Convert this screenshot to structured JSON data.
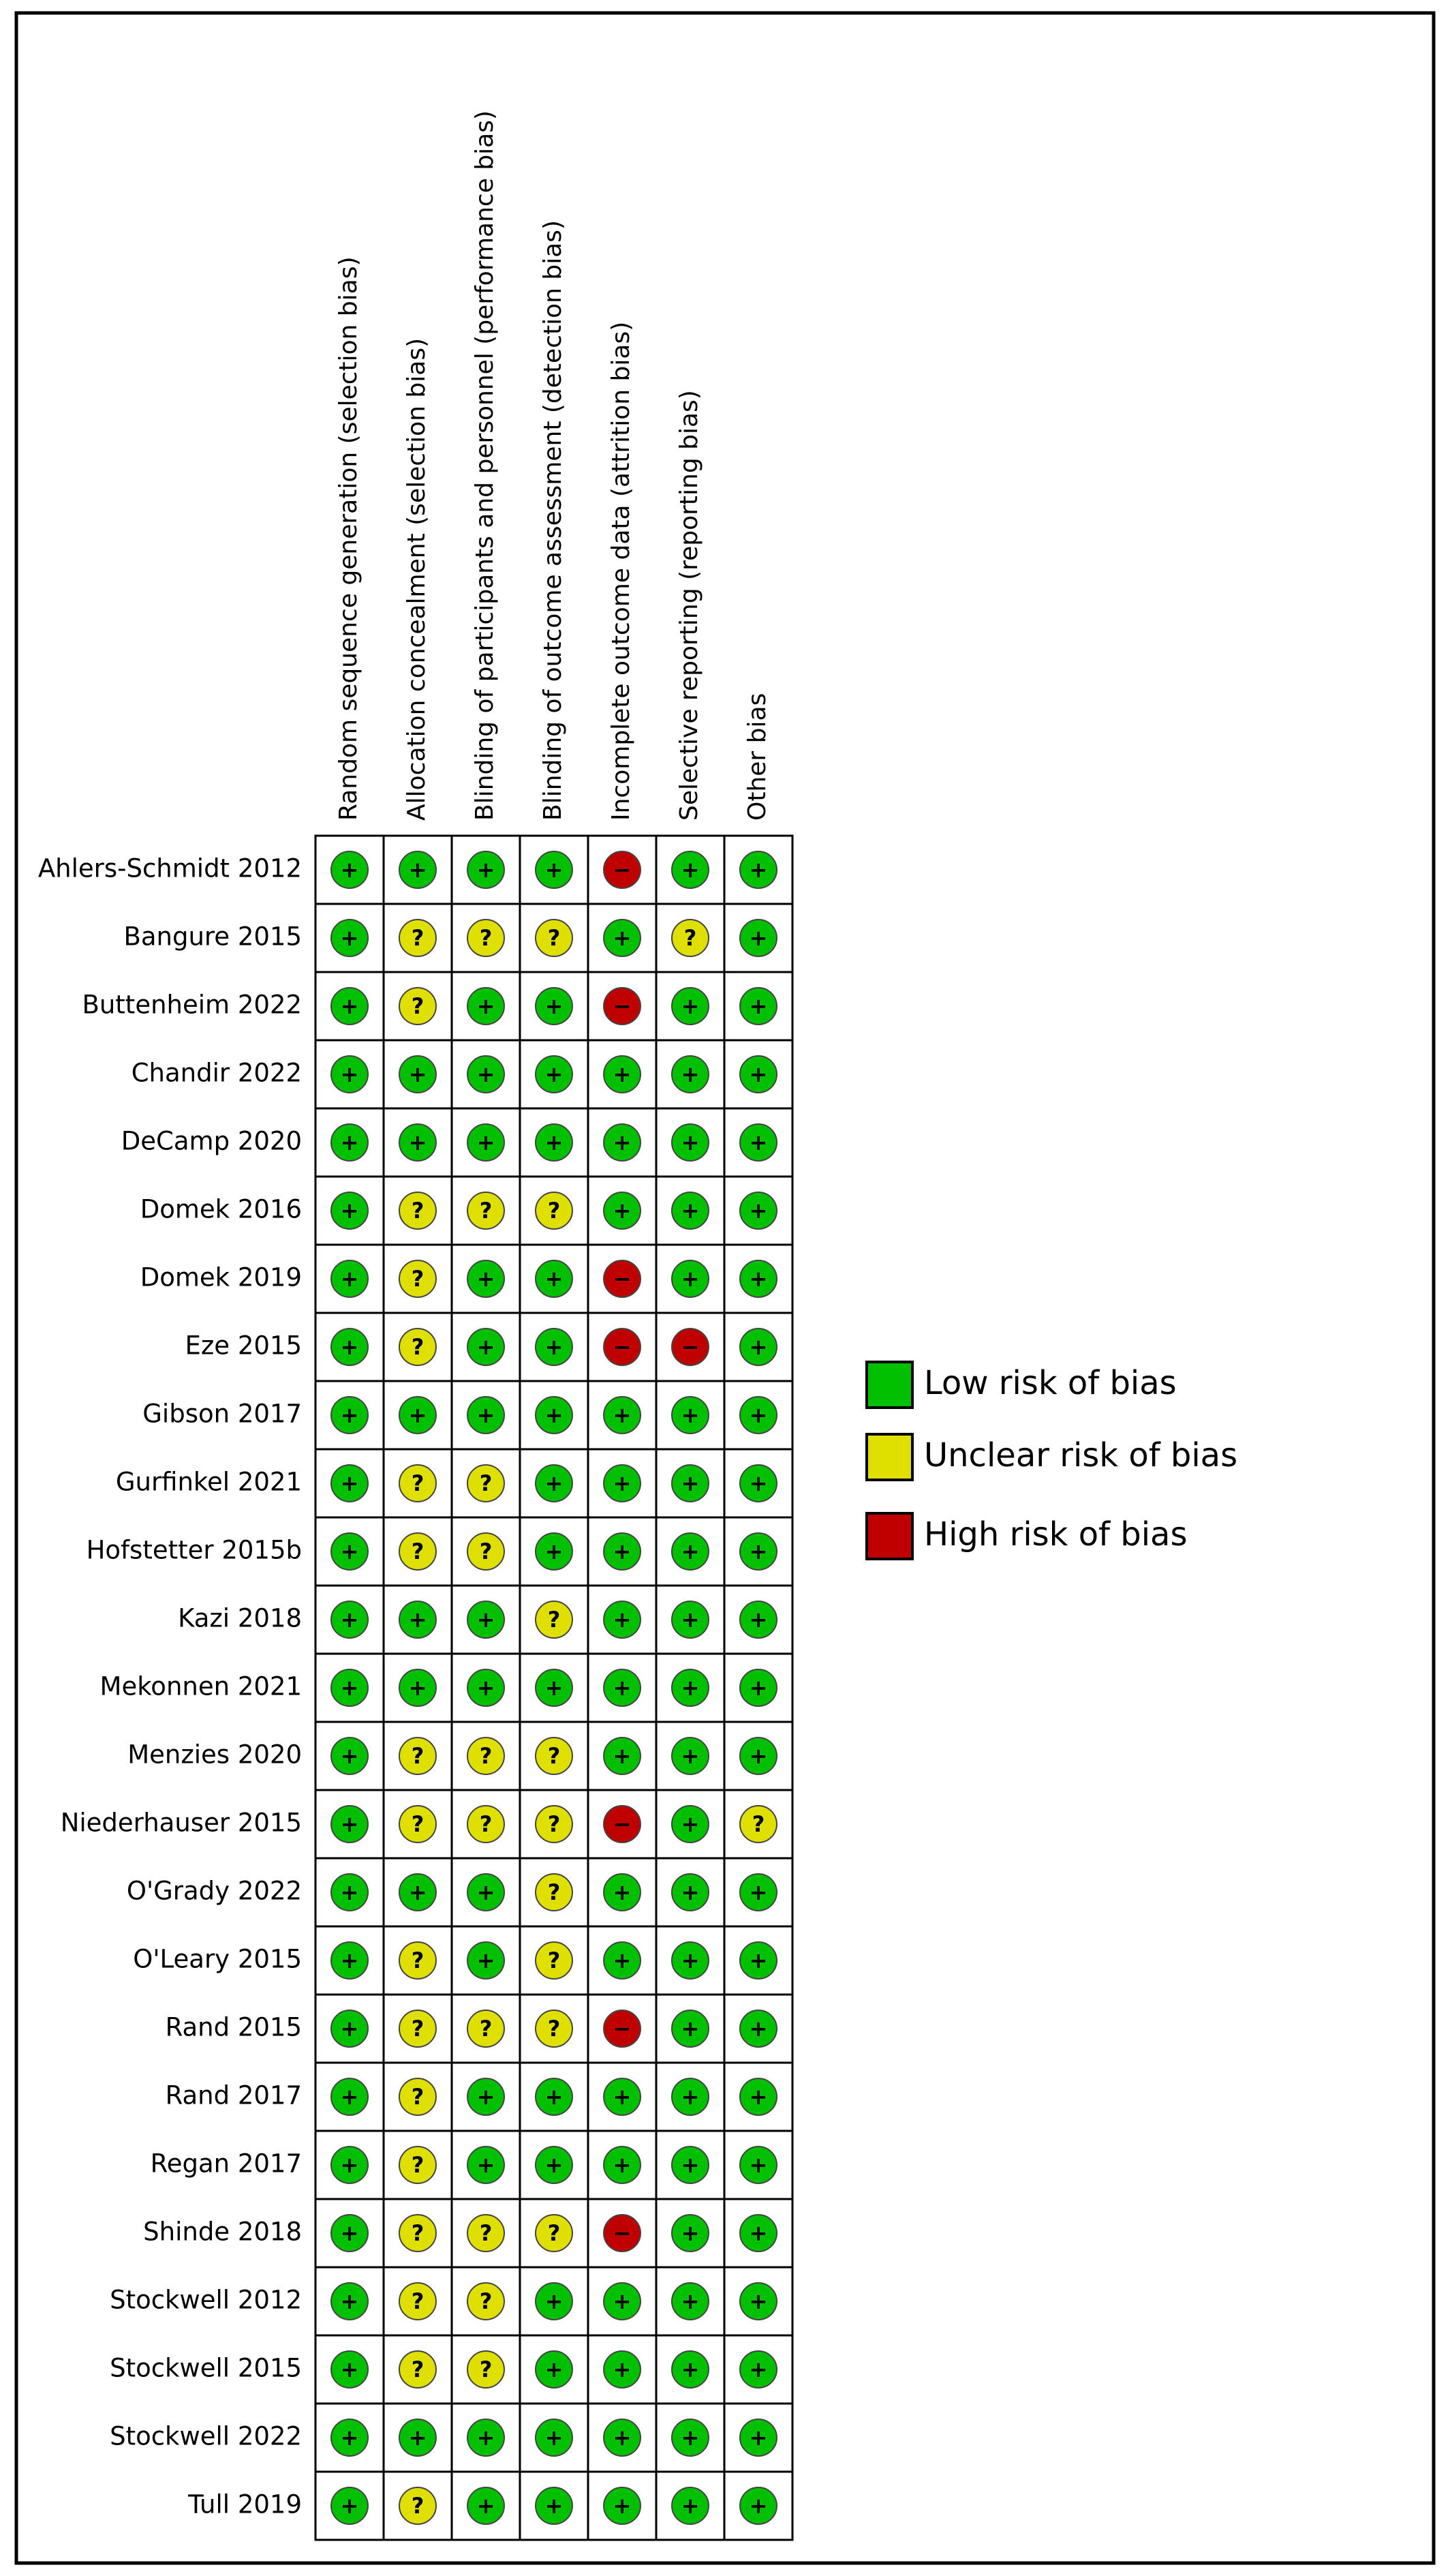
{
  "figure": {
    "domains": [
      "Random sequence generation (selection bias)",
      "Allocation concealment (selection bias)",
      "Blinding of participants and personnel (performance bias)",
      "Blinding of outcome assessment (detection bias)",
      "Incomplete outcome data (attrition bias)",
      "Selective reporting (reporting bias)",
      "Other bias"
    ],
    "legend": [
      {
        "label": "Low risk of bias",
        "color": "#00c000",
        "symbol": "+"
      },
      {
        "label": "Unclear risk of bias",
        "color": "#e0e000",
        "symbol": "?"
      },
      {
        "label": "High risk of bias",
        "color": "#c00000",
        "symbol": "−"
      }
    ],
    "rows": [
      {
        "study": "Ahlers-Schmidt 2012",
        "judgments": [
          "+",
          "+",
          "+",
          "+",
          "−",
          "+",
          "+"
        ]
      },
      {
        "study": "Bangure 2015",
        "judgments": [
          "+",
          "?",
          "?",
          "?",
          "+",
          "?",
          "+"
        ]
      },
      {
        "study": "Buttenheim 2022",
        "judgments": [
          "+",
          "?",
          "+",
          "+",
          "−",
          "+",
          "+"
        ]
      },
      {
        "study": "Chandir 2022",
        "judgments": [
          "+",
          "+",
          "+",
          "+",
          "+",
          "+",
          "+"
        ]
      },
      {
        "study": "DeCamp 2020",
        "judgments": [
          "+",
          "+",
          "+",
          "+",
          "+",
          "+",
          "+"
        ]
      },
      {
        "study": "Domek 2016",
        "judgments": [
          "+",
          "?",
          "?",
          "?",
          "+",
          "+",
          "+"
        ]
      },
      {
        "study": "Domek 2019",
        "judgments": [
          "+",
          "?",
          "+",
          "+",
          "−",
          "+",
          "+"
        ]
      },
      {
        "study": "Eze 2015",
        "judgments": [
          "+",
          "?",
          "+",
          "+",
          "−",
          "−",
          "+"
        ]
      },
      {
        "study": "Gibson 2017",
        "judgments": [
          "+",
          "+",
          "+",
          "+",
          "+",
          "+",
          "+"
        ]
      },
      {
        "study": "Gurfinkel 2021",
        "judgments": [
          "+",
          "?",
          "?",
          "+",
          "+",
          "+",
          "+"
        ]
      },
      {
        "study": "Hofstetter 2015b",
        "judgments": [
          "+",
          "?",
          "?",
          "+",
          "+",
          "+",
          "+"
        ]
      },
      {
        "study": "Kazi 2018",
        "judgments": [
          "+",
          "+",
          "+",
          "?",
          "+",
          "+",
          "+"
        ]
      },
      {
        "study": "Mekonnen 2021",
        "judgments": [
          "+",
          "+",
          "+",
          "+",
          "+",
          "+",
          "+"
        ]
      },
      {
        "study": "Menzies 2020",
        "judgments": [
          "+",
          "?",
          "?",
          "?",
          "+",
          "+",
          "+"
        ]
      },
      {
        "study": "Niederhauser 2015",
        "judgments": [
          "+",
          "?",
          "?",
          "?",
          "−",
          "+",
          "?"
        ]
      },
      {
        "study": "O'Grady 2022",
        "judgments": [
          "+",
          "+",
          "+",
          "?",
          "+",
          "+",
          "+"
        ]
      },
      {
        "study": "O'Leary 2015",
        "judgments": [
          "+",
          "?",
          "+",
          "?",
          "+",
          "+",
          "+"
        ]
      },
      {
        "study": "Rand 2015",
        "judgments": [
          "+",
          "?",
          "?",
          "?",
          "−",
          "+",
          "+"
        ]
      },
      {
        "study": "Rand 2017",
        "judgments": [
          "+",
          "?",
          "+",
          "+",
          "+",
          "+",
          "+"
        ]
      },
      {
        "study": "Regan 2017",
        "judgments": [
          "+",
          "?",
          "+",
          "+",
          "+",
          "+",
          "+"
        ]
      },
      {
        "study": "Shinde 2018",
        "judgments": [
          "+",
          "?",
          "?",
          "?",
          "−",
          "+",
          "+"
        ]
      },
      {
        "study": "Stockwell 2012",
        "judgments": [
          "+",
          "?",
          "?",
          "+",
          "+",
          "+",
          "+"
        ]
      },
      {
        "study": "Stockwell 2015",
        "judgments": [
          "+",
          "?",
          "?",
          "+",
          "+",
          "+",
          "+"
        ]
      },
      {
        "study": "Stockwell 2022",
        "judgments": [
          "+",
          "+",
          "+",
          "+",
          "+",
          "+",
          "+"
        ]
      },
      {
        "study": "Tull 2019",
        "judgments": [
          "+",
          "?",
          "+",
          "+",
          "+",
          "+",
          "+"
        ]
      }
    ]
  }
}
